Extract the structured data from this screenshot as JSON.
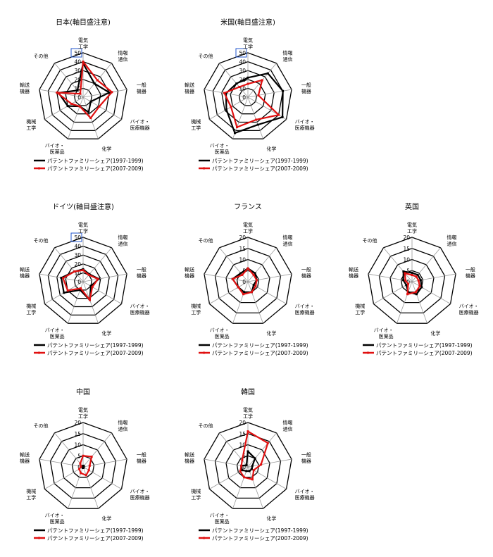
{
  "figure": {
    "legend_items": [
      {
        "label": "パテントファミリーシェア(1997-1999)",
        "color": "#000000"
      },
      {
        "label": "パテントファミリーシェア(2007-2009)",
        "color": "#e01010"
      }
    ],
    "axis_labels": [
      [
        "電気",
        "工学"
      ],
      [
        "情報",
        "通信"
      ],
      [
        "一般",
        "機器"
      ],
      [
        "バイオ・",
        "医療機器"
      ],
      [
        "化学"
      ],
      [
        "バイオ・",
        "医薬品"
      ],
      [
        "機械",
        "工学"
      ],
      [
        "輸送",
        "機器"
      ],
      [
        "その他"
      ]
    ]
  },
  "chart_data": [
    {
      "type": "radar",
      "title": "日本(軸目盛注意)",
      "categories": [
        "電気工学",
        "情報通信",
        "一般機器",
        "バイオ・医療機器",
        "化学",
        "バイオ・医薬品",
        "機械工学",
        "輸送機器",
        "その他"
      ],
      "rlim": [
        0,
        50
      ],
      "ticks": [
        0,
        10,
        20,
        30,
        40,
        50
      ],
      "tick_box": 50,
      "series": [
        {
          "name": "パテントファミリーシェア(1997-1999)",
          "values": [
            38,
            20,
            30,
            10,
            18,
            11,
            20,
            28,
            10
          ]
        },
        {
          "name": "パテントファミリーシェア(2007-2009)",
          "values": [
            40,
            25,
            33,
            21,
            25,
            11,
            15,
            30,
            5
          ]
        }
      ]
    },
    {
      "type": "radar",
      "title": "米国(軸目盛注意)",
      "categories": [
        "電気工学",
        "情報通信",
        "一般機器",
        "バイオ・医療機器",
        "化学",
        "バイオ・医薬品",
        "機械工学",
        "輸送機器",
        "その他"
      ],
      "rlim": [
        0,
        50
      ],
      "ticks": [
        0,
        10,
        20,
        30,
        40,
        50
      ],
      "tick_box": 50,
      "series": [
        {
          "name": "パテントファミリーシェア(1997-1999)",
          "values": [
            22,
            35,
            40,
            45,
            33,
            43,
            28,
            25,
            20
          ]
        },
        {
          "name": "パテントファミリーシェア(2007-2009)",
          "values": [
            15,
            25,
            12,
            40,
            27,
            36,
            22,
            27,
            15
          ]
        }
      ]
    },
    {
      "type": "radar",
      "title": "ドイツ(軸目盛注意)",
      "categories": [
        "電気工学",
        "情報通信",
        "一般機器",
        "バイオ・医療機器",
        "化学",
        "バイオ・医薬品",
        "機械工学",
        "輸送機器",
        "その他"
      ],
      "rlim": [
        0,
        50
      ],
      "ticks": [
        0,
        10,
        20,
        30,
        40,
        50
      ],
      "tick_box": 50,
      "series": [
        {
          "name": "パテントファミリーシェア(1997-1999)",
          "values": [
            14,
            11,
            18,
            10,
            22,
            10,
            25,
            25,
            15
          ]
        },
        {
          "name": "パテントファミリーシェア(2007-2009)",
          "values": [
            13,
            10,
            17,
            12,
            22,
            8,
            20,
            23,
            15
          ]
        }
      ]
    },
    {
      "type": "radar",
      "title": "フランス",
      "categories": [
        "電気工学",
        "情報通信",
        "一般機器",
        "バイオ・医療機器",
        "化学",
        "バイオ・医薬品",
        "機械工学",
        "輸送機器",
        "その他"
      ],
      "rlim": [
        0,
        20
      ],
      "ticks": [
        0,
        5,
        10,
        15,
        20
      ],
      "tick_box": null,
      "series": [
        {
          "name": "パテントファミリーシェア(1997-1999)",
          "values": [
            6,
            5,
            4,
            3,
            5,
            5,
            5,
            7,
            5
          ]
        },
        {
          "name": "パテントファミリーシェア(2007-2009)",
          "values": [
            6,
            4,
            4,
            4,
            5,
            6,
            5,
            7,
            4
          ]
        }
      ]
    },
    {
      "type": "radar",
      "title": "英国",
      "categories": [
        "電気工学",
        "情報通信",
        "一般機器",
        "バイオ・医療機器",
        "化学",
        "バイオ・医薬品",
        "機械工学",
        "輸送機器",
        "その他"
      ],
      "rlim": [
        0,
        20
      ],
      "ticks": [
        0,
        5,
        10,
        15,
        20
      ],
      "tick_box": null,
      "series": [
        {
          "name": "パテントファミリーシェア(1997-1999)",
          "values": [
            4,
            4,
            4,
            5,
            6,
            5,
            3,
            4,
            6
          ]
        },
        {
          "name": "パテントファミリーシェア(2007-2009)",
          "values": [
            3,
            3,
            3,
            4,
            5,
            6,
            2,
            3,
            5
          ]
        }
      ]
    },
    {
      "type": "radar",
      "title": "中国",
      "categories": [
        "電気工学",
        "情報通信",
        "一般機器",
        "バイオ・医療機器",
        "化学",
        "バイオ・医薬品",
        "機械工学",
        "輸送機器",
        "その他"
      ],
      "rlim": [
        0,
        20
      ],
      "ticks": [
        0,
        5,
        10,
        15,
        20
      ],
      "tick_box": null,
      "series": [
        {
          "name": "パテントファミリーシェア(1997-1999)",
          "values": [
            0.5,
            0.5,
            0.3,
            0.3,
            0.5,
            0.5,
            0.3,
            0.2,
            0.3
          ]
        },
        {
          "name": "パテントファミリーシェア(2007-2009)",
          "values": [
            5,
            6,
            3,
            3,
            4,
            3,
            2,
            1,
            2
          ]
        }
      ]
    },
    {
      "type": "radar",
      "title": "韓国",
      "categories": [
        "電気工学",
        "情報通信",
        "一般機器",
        "バイオ・医療機器",
        "化学",
        "バイオ・医薬品",
        "機械工学",
        "輸送機器",
        "その他"
      ],
      "rlim": [
        0,
        20
      ],
      "ticks": [
        0,
        5,
        10,
        15,
        20
      ],
      "tick_box": null,
      "series": [
        {
          "name": "パテントファミリーシェア(1997-1999)",
          "values": [
            7,
            5,
            2,
            2,
            2,
            2,
            3,
            3,
            1
          ]
        },
        {
          "name": "パテントファミリーシェア(2007-2009)",
          "values": [
            16,
            14,
            6,
            3,
            6,
            5,
            4,
            3,
            4
          ]
        }
      ]
    }
  ]
}
